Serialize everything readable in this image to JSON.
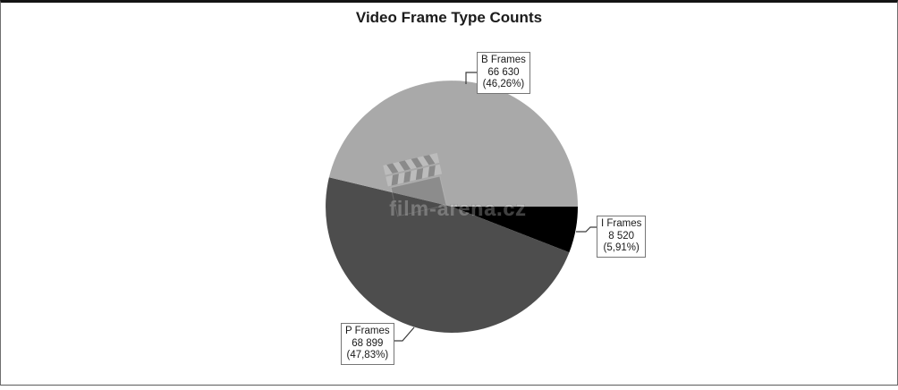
{
  "chart_data": {
    "type": "pie",
    "title": "Video Frame Type Counts",
    "slices": [
      {
        "label": "B Frames",
        "count_text": "66 630",
        "value": 66630,
        "percent": 46.26,
        "percent_text": "(46,26%)",
        "color": "#a9a9a9"
      },
      {
        "label": "I Frames",
        "count_text": "8 520",
        "value": 8520,
        "percent": 5.91,
        "percent_text": "(5,91%)",
        "color": "#000000"
      },
      {
        "label": "P Frames",
        "count_text": "68 899",
        "value": 68899,
        "percent": 47.83,
        "percent_text": "(47,83%)",
        "color": "#4d4d4d"
      }
    ],
    "start_angle_east_deg": 0,
    "draw_order_clockwise": [
      "I Frames",
      "P Frames",
      "B Frames"
    ],
    "legend_position": "external callout boxes with leader lines",
    "grid": false
  },
  "watermark": {
    "text": "film-arena.cz",
    "icon": "clapperboard-icon"
  },
  "colors": {
    "background": "#ffffff",
    "callout_border": "#767676",
    "leader_line": "#3a3a3a",
    "title_text": "#1b1b1b"
  }
}
